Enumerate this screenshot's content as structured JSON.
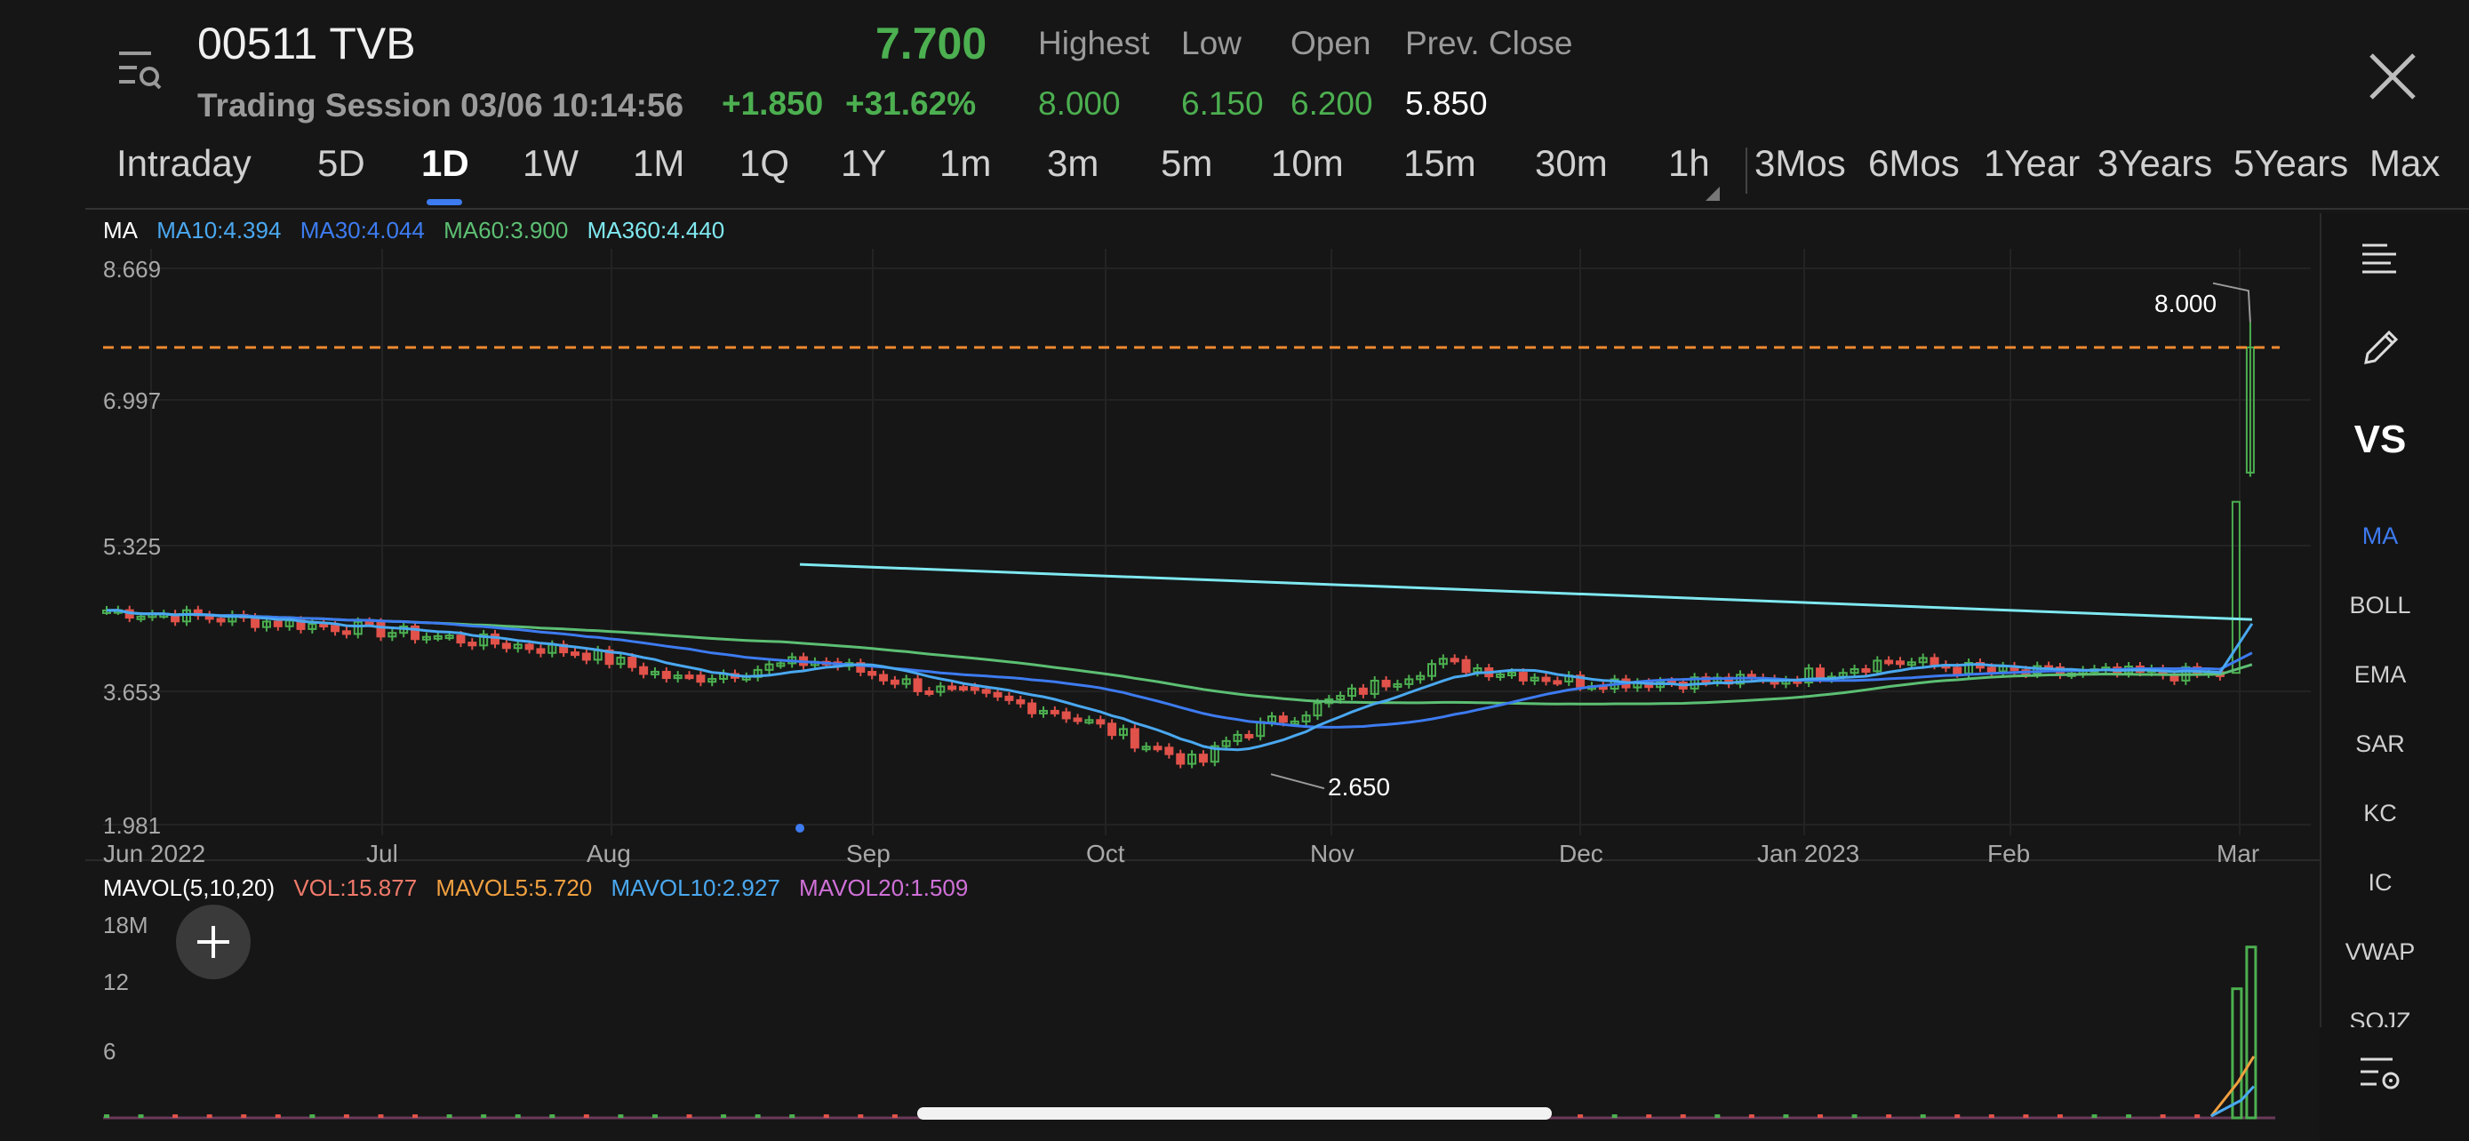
{
  "header": {
    "title": "00511 TVB",
    "price": "7.700",
    "session": "Trading Session 03/06 10:14:56",
    "change": "+1.850",
    "change_pct": "+31.62%",
    "stats": [
      {
        "label": "Highest",
        "value": "8.000",
        "color": "#4caf50"
      },
      {
        "label": "Low",
        "value": "6.150",
        "color": "#4caf50"
      },
      {
        "label": "Open",
        "value": "6.200",
        "color": "#4caf50"
      },
      {
        "label": "Prev. Close",
        "value": "5.850",
        "color": "#ffffff"
      }
    ],
    "menu_icon": "list-search-icon",
    "close_icon": "close-icon"
  },
  "tabs": [
    "Intraday",
    "5D",
    "1D",
    "1W",
    "1M",
    "1Q",
    "1Y",
    "1m",
    "3m",
    "5m",
    "10m",
    "15m",
    "30m",
    "1h",
    "3Mos",
    "6Mos",
    "1Year",
    "3Years",
    "5Years",
    "Max"
  ],
  "active_tab": "1D",
  "ma_legend": [
    {
      "text": "MA",
      "color": "#ffffff"
    },
    {
      "text": "MA10:4.394",
      "color": "#4aa8f0"
    },
    {
      "text": "MA30:4.044",
      "color": "#3d7bf0"
    },
    {
      "text": "MA60:3.900",
      "color": "#5cbf73"
    },
    {
      "text": "MA360:4.440",
      "color": "#7fe8f0"
    }
  ],
  "mavol_legend": [
    {
      "text": "MAVOL(5,10,20)",
      "color": "#ffffff"
    },
    {
      "text": "VOL:15.877",
      "color": "#f07a6a"
    },
    {
      "text": "MAVOL5:5.720",
      "color": "#f0a040"
    },
    {
      "text": "MAVOL10:2.927",
      "color": "#4aa8f0"
    },
    {
      "text": "MAVOL20:1.509",
      "color": "#d070d8"
    }
  ],
  "chart_data": {
    "type": "candlestick",
    "y_axis_labels": [
      "8.669",
      "6.997",
      "5.325",
      "3.653",
      "1.981"
    ],
    "ylim": [
      1.981,
      8.669
    ],
    "x_axis_labels": [
      "Jun 2022",
      "Jul",
      "Aug",
      "Sep",
      "Oct",
      "Nov",
      "Dec",
      "Jan 2023",
      "Feb",
      "Mar"
    ],
    "high_marker": "8.000",
    "low_marker": "2.650",
    "prev_close_line": 7.7,
    "colors": {
      "up": "#4caf50",
      "down": "#e0524a",
      "ma10": "#4aa8f0",
      "ma30": "#3d7bf0",
      "ma60": "#5cbf73",
      "ma360": "#7fe8f0",
      "prev_line": "#f08a30"
    },
    "ma360_start": 5.1,
    "ma360_end": 4.44
  },
  "volume_chart": {
    "y_axis_labels": [
      "18M",
      "12",
      "6"
    ],
    "ylim": [
      0,
      18
    ],
    "last_volumes": [
      12.0,
      15.877
    ]
  },
  "side_panel": {
    "items": [
      "MA",
      "BOLL",
      "EMA",
      "SAR",
      "KC",
      "IC",
      "VWAP",
      "SQJZ"
    ],
    "active": "MA",
    "vs_label": "VS",
    "icons": [
      "text-align-icon",
      "pencil-icon",
      "settings-list-icon"
    ]
  }
}
